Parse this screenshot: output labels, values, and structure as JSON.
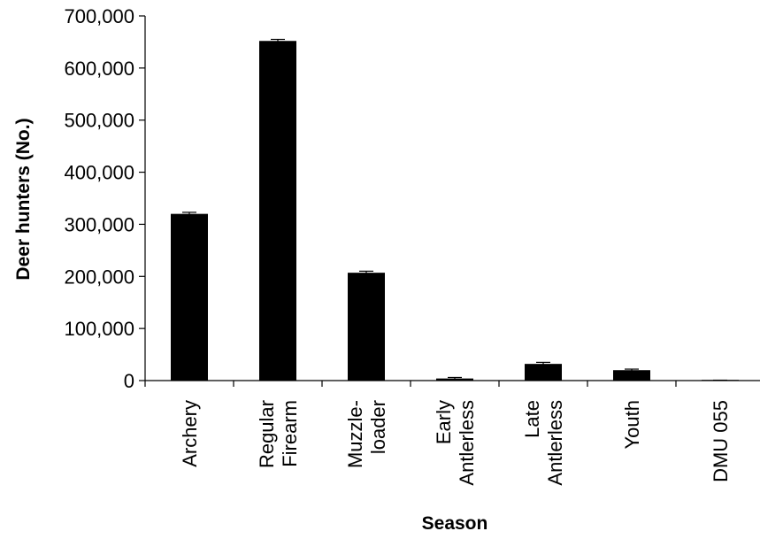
{
  "chart_data": {
    "type": "bar",
    "xlabel": "Season",
    "ylabel": "Deer hunters (No.)",
    "ylim": [
      0,
      700000
    ],
    "yticks": [
      0,
      100000,
      200000,
      300000,
      400000,
      500000,
      600000,
      700000
    ],
    "ytick_labels": [
      "0",
      "100,000",
      "200,000",
      "300,000",
      "400,000",
      "500,000",
      "600,000",
      "700,000"
    ],
    "categories": [
      [
        "Archery"
      ],
      [
        "Regular",
        "Firearm"
      ],
      [
        "Muzzle-",
        "loader"
      ],
      [
        "Early",
        "Antlerless"
      ],
      [
        "Late",
        "Antlerless"
      ],
      [
        "Youth"
      ],
      [
        "DMU 055"
      ]
    ],
    "values": [
      320000,
      652000,
      207000,
      4000,
      32000,
      20000,
      500
    ],
    "error": [
      3000,
      3000,
      3000,
      2000,
      3000,
      2000,
      300
    ],
    "bar_color": "#000000",
    "grid": false,
    "legend": "none"
  }
}
